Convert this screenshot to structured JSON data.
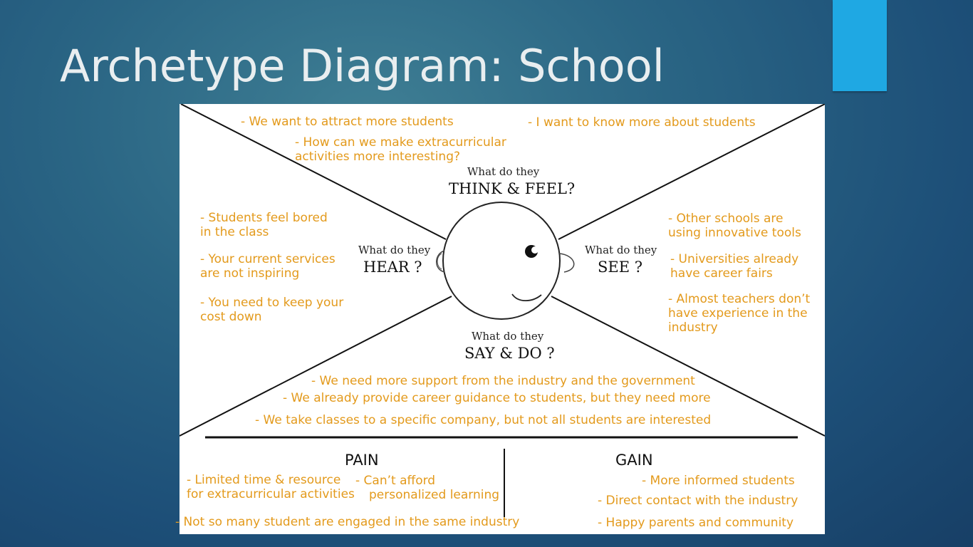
{
  "slide": {
    "title": "Archetype Diagram: School"
  },
  "diagram": {
    "think_feel": {
      "small": "What do they",
      "big": "THINK & FEEL?"
    },
    "hear": {
      "small": "What do they",
      "big": "HEAR ?"
    },
    "see": {
      "small": "What do they",
      "big": "SEE ?"
    },
    "say_do": {
      "small": "What do they",
      "big": "SAY & DO ?"
    },
    "top_notes": [
      "- We want to attract more students",
      "- I want to know more about students",
      "- How can we make extracurricular",
      "activities more interesting?"
    ],
    "hear_notes": [
      "- Students feel bored",
      "in the class",
      "- Your current services",
      "are not inspiring",
      "- You need to keep your",
      "cost down"
    ],
    "see_notes": [
      "- Other schools are",
      "using innovative tools",
      "- Universities already",
      "have career fairs",
      "- Almost teachers don’t",
      "have experience in the",
      "industry"
    ],
    "say_notes": [
      "- We need more support from the industry and the government",
      "- We already provide career guidance to students, but they need more",
      "- We take classes to a specific company, but not all students are interested"
    ],
    "pain": {
      "header": "PAIN",
      "items": [
        "-   Limited time & resource",
        "for extracurricular activities",
        "-   Can’t afford",
        "personalized learning",
        "-   Not so many student are engaged in the same industry"
      ]
    },
    "gain": {
      "header": "GAIN",
      "items": [
        "- More informed students",
        "- Direct contact with the industry",
        "- Happy parents and community"
      ]
    },
    "colors": {
      "note": "#e39a1c",
      "accent": "#1fa8e3"
    }
  }
}
